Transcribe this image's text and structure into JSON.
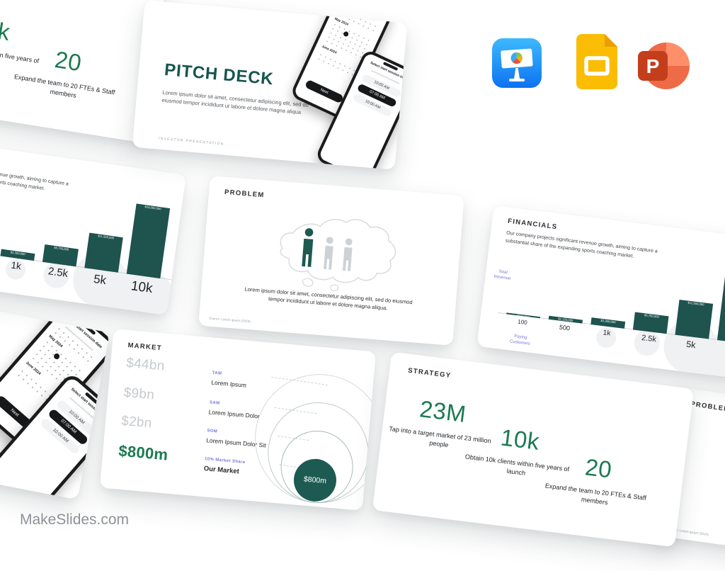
{
  "brand": {
    "watermark": "MakeSlides.com"
  },
  "colors": {
    "teal": "#1D5A52",
    "green": "#1B7A52",
    "purple": "#7478D8",
    "bar": "#1E534E"
  },
  "app_icons": {
    "keynote": "Apple Keynote",
    "google_slides": "Google Slides",
    "powerpoint": "Microsoft PowerPoint",
    "powerpoint_letter": "P"
  },
  "pitch_deck": {
    "title": "PITCH DECK",
    "body": "Lorem ipsum dolor sit amet, consectetur adipiscing elit, sed do eiusmod tempor incididunt ut labore et dolore magna aliqua",
    "footer": "INVESTOR PRESENTATION"
  },
  "phone_date": {
    "header": "Select start session date",
    "month1": "May 2024",
    "month2": "June 2024",
    "next_label": "Next"
  },
  "phone_time": {
    "header": "Select start session time",
    "slots": [
      "10:00 AM",
      "07:00 AM",
      "10:00 AM"
    ]
  },
  "problem": {
    "title": "PROBLEM",
    "body": "Lorem ipsum dolor sit amet, consectetur adipiscing elit, sed do eiusmod tempor incididunt ut labore et dolore magna aliqua.",
    "source": "Source: Lorem ipsum (2024)"
  },
  "financials": {
    "title": "FINANCIALS",
    "body": "Our company projects significant revenue growth, aiming to capture a substantial share of the expanding sports coaching market."
  },
  "market": {
    "title": "MARKET",
    "rows": [
      {
        "value": "$44bn",
        "tag": "TAM",
        "label": "Lorem Ipsum"
      },
      {
        "value": "$9bn",
        "tag": "SAM",
        "label": "Lorem Ipsum Dolor"
      },
      {
        "value": "$2bn",
        "tag": "SOM",
        "label": "Lorem Ipsum Dolor Sit"
      },
      {
        "value": "$800m",
        "tag": "10% Market Share",
        "label": "Our Market"
      }
    ],
    "bubble_label": "$800m"
  },
  "strategy": {
    "title": "STRATEGY",
    "stats": [
      {
        "value": "23M",
        "caption": "Tap into a target market of 23 million people"
      },
      {
        "value": "10k",
        "caption": "Obtain 10k clients within five years of launch"
      },
      {
        "value": "20",
        "caption": "Expand the team to 20 FTEs & Staff members"
      }
    ]
  },
  "chart_data": {
    "type": "bar",
    "title": "FINANCIALS",
    "categories": [
      "100",
      "500",
      "1k",
      "2.5k",
      "5k",
      "10k"
    ],
    "values": [
      230000,
      1150000,
      2300000,
      5750000,
      11500000,
      23000000
    ],
    "value_labels": [
      "$230,000",
      "$1,150,000",
      "$2,300,000",
      "$5,750,000",
      "$11,500,000",
      "$23,000,000"
    ],
    "xlabel": "Paying Customers",
    "ylabel": "Total Revenue",
    "ylim": [
      0,
      23000000
    ],
    "grid": false,
    "legend_position": "none"
  }
}
